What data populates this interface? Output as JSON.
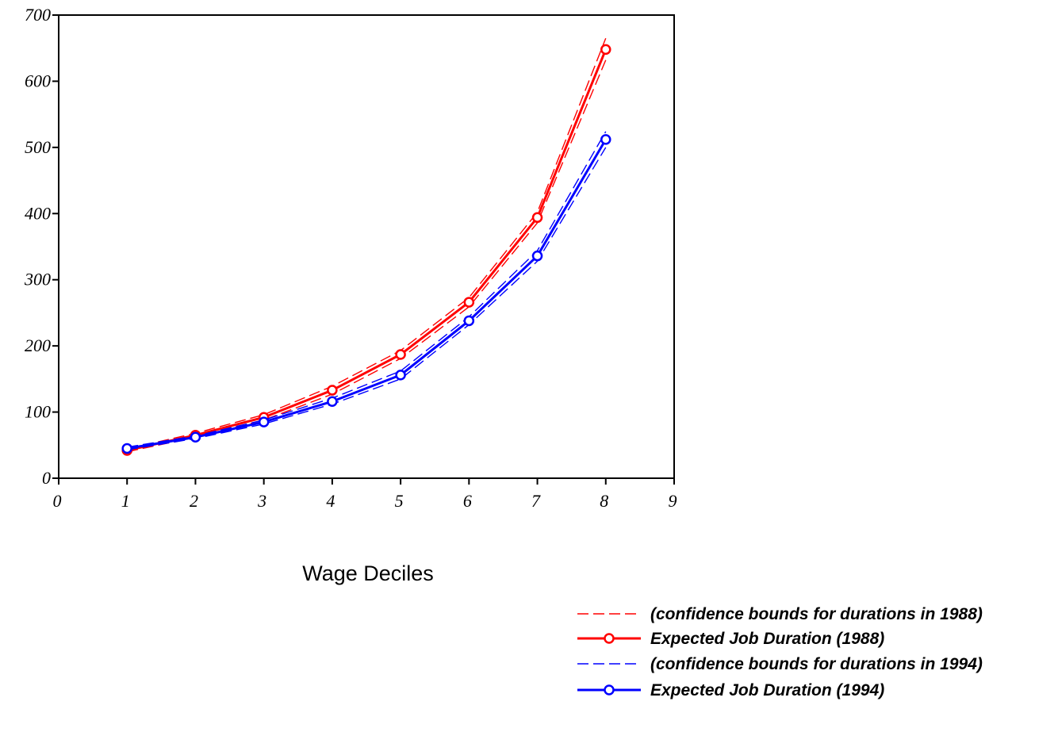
{
  "chart_data": {
    "type": "line",
    "title": "",
    "xlabel": "Wage Deciles",
    "ylabel": "",
    "xlim": [
      0,
      9
    ],
    "ylim": [
      0,
      700
    ],
    "xticks": [
      "0",
      "1",
      "2",
      "3",
      "4",
      "5",
      "6",
      "7",
      "8",
      "9"
    ],
    "yticks": [
      "0",
      "100",
      "200",
      "300",
      "400",
      "500",
      "600",
      "700"
    ],
    "grid": false,
    "legend_position": "bottom-right",
    "x": [
      1,
      2,
      3,
      4,
      5,
      6,
      7,
      8
    ],
    "series": [
      {
        "name": "Expected Job Duration (1988)",
        "color": "#ff0000",
        "style": "solid-circle",
        "values": [
          42,
          65,
          92,
          133,
          187,
          266,
          394,
          648
        ],
        "lower": [
          40,
          62,
          88,
          127,
          181,
          259,
          386,
          632
        ],
        "upper": [
          44,
          68,
          96,
          139,
          193,
          273,
          402,
          665
        ]
      },
      {
        "name": "Expected Job Duration (1994)",
        "color": "#0000ff",
        "style": "solid-circle",
        "values": [
          45,
          62,
          85,
          116,
          156,
          238,
          336,
          512
        ],
        "lower": [
          43,
          60,
          82,
          112,
          150,
          232,
          328,
          500
        ],
        "upper": [
          47,
          64,
          88,
          121,
          162,
          244,
          344,
          524
        ]
      }
    ],
    "legend": [
      {
        "label": "(confidence bounds for durations in 1988)",
        "color": "#ff0000",
        "style": "dashed"
      },
      {
        "label": "Expected Job Duration (1988)",
        "color": "#ff0000",
        "style": "solid-circle"
      },
      {
        "label": "(confidence bounds for durations in 1994)",
        "color": "#0000ff",
        "style": "dashed"
      },
      {
        "label": "Expected Job Duration (1994)",
        "color": "#0000ff",
        "style": "solid-circle"
      }
    ]
  }
}
